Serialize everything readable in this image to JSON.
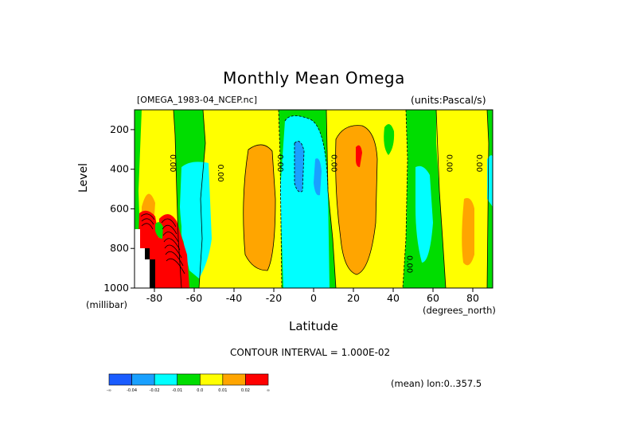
{
  "chart_data": {
    "type": "contour",
    "title": "Monthly Mean Omega",
    "source_label": "[OMEGA_1983-04_NCEP.nc]",
    "units_label": "(units:Pascal/s)",
    "xlabel": "Latitude",
    "x_unit": "(degrees_north)",
    "ylabel": "Level",
    "y_unit": "(millibar)",
    "xlim": [
      -90,
      90
    ],
    "ylim": [
      1000,
      100
    ],
    "x_ticks": [
      "-80",
      "-60",
      "-40",
      "-20",
      "0",
      "20",
      "40",
      "60",
      "80"
    ],
    "y_ticks": [
      "200",
      "400",
      "600",
      "800",
      "1000"
    ],
    "contour_interval": "CONTOUR INTERVAL = 1.000E-02",
    "mean_label": "(mean) lon:0..357.5",
    "colorbar": {
      "labels": [
        "-∞",
        "-0.04",
        "-0.02",
        "-0.01",
        "0.0",
        "0.01",
        "0.02",
        "∞"
      ],
      "colors": [
        "#1a5cff",
        "#19a0ff",
        "#00ffff",
        "#00dd00",
        "#ffff00",
        "#ffa500",
        "#ff0000"
      ]
    },
    "contour_labels": [
      {
        "text": "0.00",
        "lat": -72,
        "level": 370
      },
      {
        "text": "0.00",
        "lat": -48,
        "level": 420
      },
      {
        "text": "0.00",
        "lat": -18,
        "level": 370
      },
      {
        "text": "0.00",
        "lat": 9,
        "level": 370
      },
      {
        "text": "0.00",
        "lat": 47,
        "level": 880
      },
      {
        "text": "0.00",
        "lat": 67,
        "level": 370
      },
      {
        "text": "0.00",
        "lat": 82,
        "level": 370
      }
    ]
  }
}
